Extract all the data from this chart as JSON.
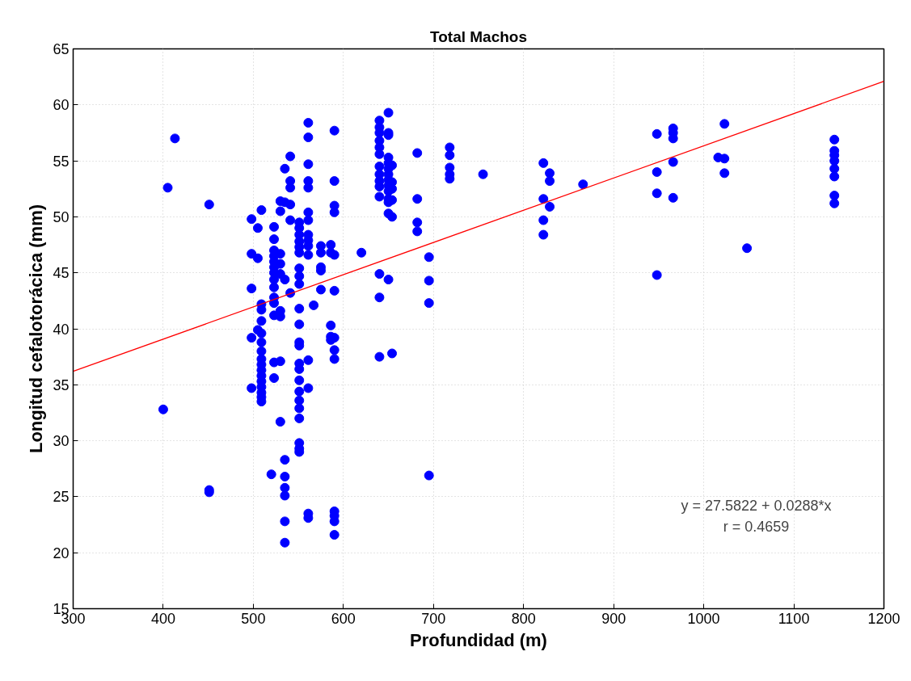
{
  "chart_data": {
    "type": "scatter",
    "title": "Total Machos",
    "xlabel": "Profundidad (m)",
    "ylabel": "Longitud cefalotorácica (mm)",
    "xlim": [
      300,
      1200
    ],
    "ylim": [
      15,
      65
    ],
    "xticks": [
      300,
      400,
      500,
      600,
      700,
      800,
      900,
      1000,
      1100,
      1200
    ],
    "yticks": [
      15,
      20,
      25,
      30,
      35,
      40,
      45,
      50,
      55,
      60,
      65
    ],
    "grid": true,
    "annotations": [
      "y = 27.5822 + 0.0288*x",
      "r = 0.4659"
    ],
    "series": [
      {
        "color": "#0000ff",
        "marker": "circle",
        "x": [
          400,
          405,
          413,
          451,
          451,
          451,
          498,
          498,
          498,
          498,
          498,
          505,
          505,
          505,
          509,
          509,
          509,
          509,
          509,
          509,
          509,
          509,
          509,
          509,
          509,
          509,
          509,
          509,
          509,
          509,
          520,
          523,
          523,
          523,
          523,
          523,
          523,
          523,
          523,
          523,
          523,
          523,
          523,
          523,
          523,
          530,
          530,
          530,
          530,
          530,
          530,
          530,
          530,
          530,
          535,
          535,
          535,
          535,
          535,
          535,
          535,
          535,
          535,
          541,
          541,
          541,
          541,
          541,
          541,
          551,
          551,
          551,
          551,
          551,
          551,
          551,
          551,
          551,
          551,
          551,
          551,
          551,
          551,
          551,
          551,
          551,
          551,
          551,
          551,
          551,
          551,
          551,
          561,
          561,
          561,
          561,
          561,
          561,
          561,
          561,
          561,
          561,
          561,
          561,
          561,
          561,
          561,
          567,
          575,
          575,
          575,
          575,
          575,
          586,
          586,
          586,
          586,
          586,
          590,
          590,
          590,
          590,
          590,
          590,
          590,
          590,
          590,
          590,
          590,
          590,
          590,
          620,
          640,
          640,
          640,
          640,
          640,
          640,
          640,
          640,
          640,
          640,
          640,
          640,
          640,
          640,
          650,
          650,
          650,
          650,
          650,
          650,
          650,
          650,
          650,
          650,
          650,
          650,
          650,
          650,
          654,
          654,
          654,
          654,
          654,
          654,
          682,
          682,
          682,
          682,
          695,
          695,
          695,
          695,
          718,
          718,
          718,
          718,
          718,
          755,
          822,
          822,
          822,
          822,
          829,
          829,
          829,
          866,
          948,
          948,
          948,
          948,
          966,
          966,
          966,
          966,
          966,
          1016,
          1023,
          1023,
          1023,
          1048,
          1145,
          1145,
          1145,
          1145,
          1145,
          1145,
          1145,
          1145
        ],
        "values": [
          32.8,
          52.6,
          57.0,
          51.1,
          25.6,
          25.4,
          49.8,
          46.7,
          43.6,
          39.2,
          34.7,
          49.0,
          46.3,
          39.9,
          50.6,
          42.2,
          41.7,
          40.7,
          39.6,
          38.8,
          38.0,
          37.3,
          36.8,
          36.3,
          35.8,
          35.3,
          34.8,
          34.3,
          33.9,
          33.5,
          27.0,
          49.1,
          48.0,
          47.0,
          46.5,
          46.0,
          45.5,
          45.0,
          44.4,
          43.7,
          42.8,
          42.3,
          41.2,
          37.0,
          35.6,
          51.4,
          50.5,
          46.7,
          45.8,
          44.9,
          41.6,
          41.1,
          37.1,
          31.7,
          54.3,
          51.3,
          44.4,
          28.3,
          26.8,
          25.8,
          25.1,
          22.8,
          20.9,
          55.4,
          53.2,
          52.6,
          51.1,
          49.7,
          43.2,
          49.5,
          49.0,
          48.4,
          47.8,
          47.3,
          46.8,
          45.4,
          44.7,
          44.0,
          41.8,
          40.4,
          38.8,
          38.5,
          36.9,
          36.4,
          35.4,
          34.4,
          33.6,
          32.9,
          32.0,
          29.8,
          29.3,
          29.0,
          58.4,
          57.1,
          54.7,
          53.2,
          52.6,
          50.4,
          49.7,
          48.4,
          47.9,
          47.4,
          46.6,
          37.2,
          34.7,
          23.5,
          23.1,
          42.1,
          47.4,
          46.8,
          45.5,
          45.2,
          43.5,
          47.5,
          46.8,
          40.3,
          39.3,
          39.0,
          57.7,
          53.2,
          51.0,
          50.4,
          46.6,
          43.4,
          39.2,
          38.1,
          37.3,
          23.7,
          23.3,
          22.8,
          21.6,
          46.8,
          58.6,
          58.0,
          57.5,
          56.8,
          56.2,
          55.6,
          54.5,
          53.8,
          53.2,
          52.7,
          51.8,
          44.9,
          42.8,
          37.5,
          59.3,
          57.5,
          57.3,
          55.3,
          54.8,
          54.3,
          53.8,
          53.3,
          52.8,
          52.3,
          51.6,
          51.3,
          50.3,
          44.4,
          54.6,
          53.1,
          52.5,
          51.5,
          50.0,
          37.8,
          55.7,
          51.6,
          49.5,
          48.7,
          46.4,
          44.3,
          42.3,
          26.9,
          56.2,
          55.5,
          54.4,
          53.8,
          53.4,
          53.8,
          54.8,
          51.6,
          49.7,
          48.4,
          53.9,
          53.2,
          50.9,
          52.9,
          57.4,
          54.0,
          52.1,
          44.8,
          57.9,
          57.5,
          57.0,
          54.9,
          51.7,
          55.3,
          58.3,
          55.2,
          53.9,
          47.2,
          56.9,
          55.9,
          55.5,
          55.0,
          54.3,
          53.6,
          51.9,
          51.2
        ]
      },
      {
        "type": "line",
        "color": "#ff0000",
        "x": [
          300,
          1200
        ],
        "values": [
          36.2,
          62.1
        ]
      }
    ]
  }
}
